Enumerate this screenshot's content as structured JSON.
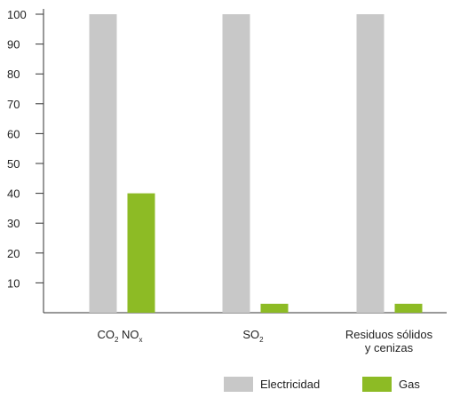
{
  "chart_data": {
    "type": "bar",
    "categories": [
      {
        "main": "CO",
        "sub": "2",
        "main2": " NO",
        "sub2": "x"
      },
      {
        "main": "SO",
        "sub": "2"
      },
      {
        "line1": "Residuos sólidos",
        "line2": "y cenizas"
      }
    ],
    "series": [
      {
        "name": "Electricidad",
        "color": "#c8c8c8",
        "values": [
          100,
          100,
          100
        ]
      },
      {
        "name": "Gas",
        "color": "#8dbb25",
        "values": [
          40,
          3,
          3
        ]
      }
    ],
    "yticks": [
      "10",
      "20",
      "30",
      "40",
      "50",
      "60",
      "70",
      "80",
      "90",
      "100"
    ],
    "ylim": [
      0,
      100
    ],
    "grid": false,
    "legend_position": "bottom-right"
  }
}
